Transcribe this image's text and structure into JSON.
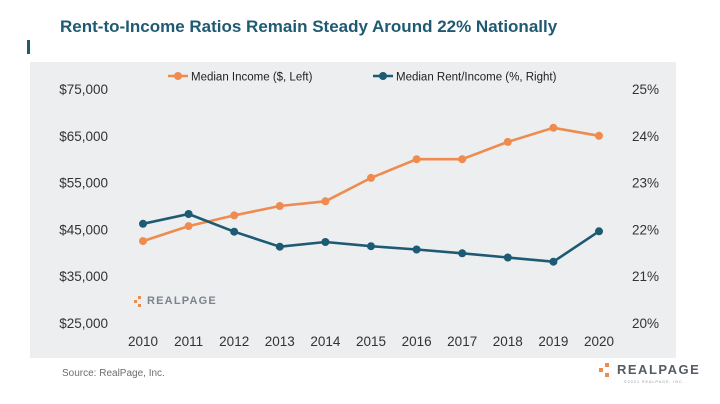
{
  "page": {
    "title": "Rent-to-Income Ratios Remain Steady Around 22% Nationally",
    "source": "Source: RealPage, Inc.",
    "brand": "REALPAGE",
    "brand_sub": "©2021 REALPAGE, INC.",
    "watermark": "REALPAGE"
  },
  "colors": {
    "title": "#1f5a73",
    "income": "#ee8c4f",
    "ratio": "#1d5a73",
    "axis_text": "#333333",
    "panel": "#eceef0"
  },
  "chart_data": {
    "type": "line",
    "title": "Rent-to-Income Ratios Remain Steady Around 22% Nationally",
    "categories": [
      "2010",
      "2011",
      "2012",
      "2013",
      "2014",
      "2015",
      "2016",
      "2017",
      "2018",
      "2019",
      "2020"
    ],
    "series": [
      {
        "name": "Median Income ($, Left)",
        "axis": "left",
        "values": [
          42500,
          45700,
          48000,
          50000,
          51000,
          56000,
          60000,
          60000,
          63700,
          66700,
          65000
        ]
      },
      {
        "name": "Median Rent/Income (%, Right)",
        "axis": "right",
        "values": [
          22.12,
          22.33,
          21.95,
          21.63,
          21.73,
          21.64,
          21.57,
          21.49,
          21.4,
          21.31,
          21.96
        ]
      }
    ],
    "left_axis": {
      "ylim": [
        25000,
        75000
      ],
      "ticks": [
        25000,
        35000,
        45000,
        55000,
        65000,
        75000
      ],
      "tick_labels": [
        "$25,000",
        "$35,000",
        "$45,000",
        "$55,000",
        "$65,000",
        "$75,000"
      ]
    },
    "right_axis": {
      "ylim": [
        20,
        25
      ],
      "ticks": [
        20,
        21,
        22,
        23,
        24,
        25
      ],
      "tick_labels": [
        "20%",
        "21%",
        "22%",
        "23%",
        "24%",
        "25%"
      ]
    },
    "legend": "top-center",
    "grid": false
  }
}
